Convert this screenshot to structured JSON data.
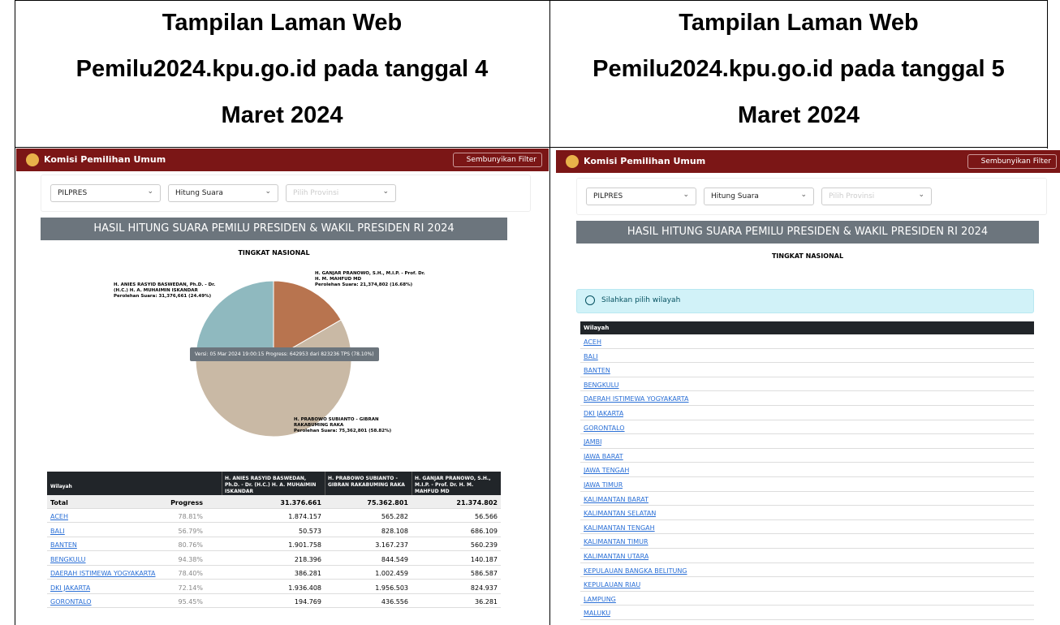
{
  "header": {
    "left": [
      "Tampilan Laman Web",
      "Pemilu2024.kpu.go.id pada tanggal 4",
      "Maret 2024"
    ],
    "right": [
      "Tampilan Laman Web",
      "Pemilu2024.kpu.go.id pada tanggal 5",
      "Maret 2024"
    ]
  },
  "app": {
    "brand": "Komisi Pemilihan Umum",
    "filter_button": "Sembunyikan Filter",
    "selects": [
      "PILPRES",
      "Hitung Suara",
      "Pilih Provinsi"
    ],
    "banner": "HASIL HITUNG SUARA PEMILU PRESIDEN & WAKIL PRESIDEN RI 2024",
    "subtitle": "TINGKAT NASIONAL"
  },
  "left": {
    "pie": {
      "slices": [
        {
          "name": "H. ANIES RASYID BASWEDAN, Ph.D. - Dr. (H.C.) H. A. MUHAIMIN ISKANDAR",
          "label": "Perolehan Suara: 31,376,661 (24.49%)",
          "value": 31376661,
          "color": "#8fb9bf"
        },
        {
          "name": "H. GANJAR PRANOWO, S.H., M.I.P. - Prof. Dr. H. M. MAHFUD MD",
          "label": "Perolehan Suara: 21,374,802 (16.68%)",
          "value": 21374802,
          "color": "#b8744f"
        },
        {
          "name": "H. PRABOWO SUBIANTO - GIBRAN RAKABUMING RAKA",
          "label": "Perolehan Suara: 75,362,801 (58.82%)",
          "value": 75362801,
          "color": "#c9b9a5"
        }
      ],
      "tooltip": "Versi: 05 Mar 2024 19:00:15 Progress: 642953 dari 823236 TPS (78.10%)"
    },
    "table": {
      "header": [
        "Wilayah",
        "H. ANIES RASYID BASWEDAN, Ph.D. - Dr. (H.C.) H. A. MUHAIMIN ISKANDAR",
        "H. PRABOWO SUBIANTO - GIBRAN RAKABUMING RAKA",
        "H. GANJAR PRANOWO, S.H., M.I.P. - Prof. Dr. H. M. MAHFUD MD"
      ],
      "total": [
        "Total",
        "Progress",
        "31.376.661",
        "75.362.801",
        "21.374.802"
      ],
      "rows": [
        [
          "ACEH",
          "78.81%",
          "1.874.157",
          "565.282",
          "56.566"
        ],
        [
          "BALI",
          "56.79%",
          "50.573",
          "828.108",
          "686.109"
        ],
        [
          "BANTEN",
          "80.76%",
          "1.901.758",
          "3.167.237",
          "560.239"
        ],
        [
          "BENGKULU",
          "94.38%",
          "218.396",
          "844.549",
          "140.187"
        ],
        [
          "DAERAH ISTIMEWA YOGYAKARTA",
          "78.40%",
          "386.281",
          "1.002.459",
          "586.587"
        ],
        [
          "DKI JAKARTA",
          "72.14%",
          "1.936.408",
          "1.956.503",
          "824.937"
        ],
        [
          "GORONTALO",
          "95.45%",
          "194.769",
          "436.556",
          "36.281"
        ]
      ]
    }
  },
  "right": {
    "alert": "Silahkan pilih wilayah",
    "table": {
      "header": "Wilayah",
      "rows": [
        "ACEH",
        "BALI",
        "BANTEN",
        "BENGKULU",
        "DAERAH ISTIMEWA YOGYAKARTA",
        "DKI JAKARTA",
        "GORONTALO",
        "JAMBI",
        "JAWA BARAT",
        "JAWA TENGAH",
        "JAWA TIMUR",
        "KALIMANTAN BARAT",
        "KALIMANTAN SELATAN",
        "KALIMANTAN TENGAH",
        "KALIMANTAN TIMUR",
        "KALIMANTAN UTARA",
        "KEPULAUAN BANGKA BELITUNG",
        "KEPULAUAN RIAU",
        "LAMPUNG",
        "MALUKU"
      ]
    }
  }
}
